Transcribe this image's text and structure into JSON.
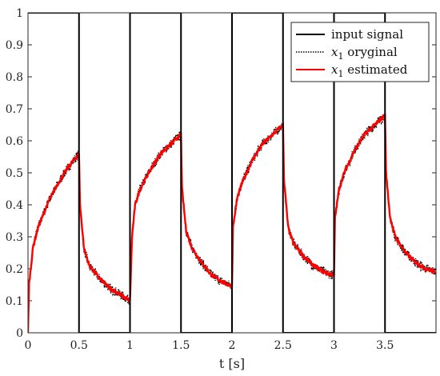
{
  "chart_data": {
    "type": "line",
    "xlabel": "t [s]",
    "ylabel": "",
    "xlim": [
      0,
      4
    ],
    "ylim": [
      0,
      1
    ],
    "x_ticks": [
      0,
      0.5,
      1,
      1.5,
      2,
      2.5,
      3,
      3.5
    ],
    "x_tick_labels": [
      "0",
      "0.5",
      "1",
      "1.5",
      "2",
      "2.5",
      "3",
      "3.5"
    ],
    "y_ticks": [
      0,
      0.1,
      0.2,
      0.3,
      0.4,
      0.5,
      0.6,
      0.7,
      0.8,
      0.9,
      1
    ],
    "y_tick_labels": [
      "0",
      "0.1",
      "0.2",
      "0.3",
      "0.4",
      "0.5",
      "0.6",
      "0.7",
      "0.8",
      "0.9",
      "1"
    ],
    "grid": false,
    "legend_position": "top-right",
    "series": [
      {
        "name": "input signal",
        "color": "#000000",
        "style": "solid",
        "x": [
          0,
          0.5,
          0.5,
          1,
          1,
          1.5,
          1.5,
          2,
          2,
          2.5,
          2.5,
          3,
          3,
          3.5,
          3.5,
          4
        ],
        "y": [
          1,
          1,
          0,
          0,
          1,
          1,
          0,
          0,
          1,
          1,
          0,
          0,
          1,
          1,
          0,
          0
        ]
      },
      {
        "name_prefix": "x",
        "name_sub": "1",
        "name_suffix": " oryginal",
        "color": "#000000",
        "style": "dotted",
        "x": [
          0,
          0.01,
          0.05,
          0.1,
          0.2,
          0.3,
          0.4,
          0.5,
          0.5,
          0.51,
          0.55,
          0.6,
          0.7,
          0.8,
          0.9,
          1.0,
          1.0,
          1.02,
          1.05,
          1.1,
          1.2,
          1.3,
          1.4,
          1.5,
          1.5,
          1.51,
          1.55,
          1.6,
          1.7,
          1.8,
          1.9,
          2.0,
          2.0,
          2.01,
          2.05,
          2.1,
          2.2,
          2.3,
          2.4,
          2.5,
          2.5,
          2.51,
          2.55,
          2.6,
          2.7,
          2.8,
          2.9,
          3.0,
          3.0,
          3.01,
          3.05,
          3.1,
          3.2,
          3.3,
          3.4,
          3.5,
          3.5,
          3.51,
          3.55,
          3.6,
          3.7,
          3.8,
          3.9,
          4.0
        ],
        "y": [
          0,
          0.15,
          0.27,
          0.33,
          0.41,
          0.47,
          0.52,
          0.56,
          0.56,
          0.4,
          0.26,
          0.21,
          0.17,
          0.14,
          0.12,
          0.1,
          0.1,
          0.3,
          0.4,
          0.45,
          0.51,
          0.56,
          0.59,
          0.62,
          0.62,
          0.45,
          0.32,
          0.27,
          0.22,
          0.18,
          0.16,
          0.145,
          0.145,
          0.33,
          0.42,
          0.47,
          0.54,
          0.59,
          0.62,
          0.65,
          0.65,
          0.48,
          0.33,
          0.28,
          0.24,
          0.21,
          0.19,
          0.18,
          0.18,
          0.36,
          0.45,
          0.5,
          0.57,
          0.62,
          0.65,
          0.68,
          0.68,
          0.5,
          0.36,
          0.3,
          0.25,
          0.22,
          0.2,
          0.19
        ]
      },
      {
        "name_prefix": "x",
        "name_sub": "1",
        "name_suffix": " estimated",
        "color": "#ff0000",
        "style": "solid",
        "x": [
          0,
          0.01,
          0.05,
          0.1,
          0.2,
          0.3,
          0.4,
          0.5,
          0.5,
          0.51,
          0.55,
          0.6,
          0.7,
          0.8,
          0.9,
          1.0,
          1.0,
          1.02,
          1.05,
          1.1,
          1.2,
          1.3,
          1.4,
          1.5,
          1.5,
          1.51,
          1.55,
          1.6,
          1.7,
          1.8,
          1.9,
          2.0,
          2.0,
          2.01,
          2.05,
          2.1,
          2.2,
          2.3,
          2.4,
          2.5,
          2.5,
          2.51,
          2.55,
          2.6,
          2.7,
          2.8,
          2.9,
          3.0,
          3.0,
          3.01,
          3.05,
          3.1,
          3.2,
          3.3,
          3.4,
          3.5,
          3.5,
          3.51,
          3.55,
          3.6,
          3.7,
          3.8,
          3.9,
          4.0
        ],
        "y": [
          0,
          0.15,
          0.27,
          0.33,
          0.41,
          0.47,
          0.52,
          0.56,
          0.56,
          0.4,
          0.26,
          0.21,
          0.17,
          0.14,
          0.12,
          0.1,
          0.1,
          0.3,
          0.4,
          0.45,
          0.51,
          0.56,
          0.59,
          0.62,
          0.62,
          0.45,
          0.32,
          0.27,
          0.22,
          0.18,
          0.16,
          0.145,
          0.145,
          0.33,
          0.42,
          0.47,
          0.54,
          0.59,
          0.62,
          0.65,
          0.65,
          0.48,
          0.33,
          0.28,
          0.24,
          0.21,
          0.19,
          0.18,
          0.18,
          0.36,
          0.45,
          0.5,
          0.57,
          0.62,
          0.65,
          0.68,
          0.68,
          0.5,
          0.36,
          0.3,
          0.25,
          0.22,
          0.2,
          0.19
        ]
      }
    ]
  }
}
